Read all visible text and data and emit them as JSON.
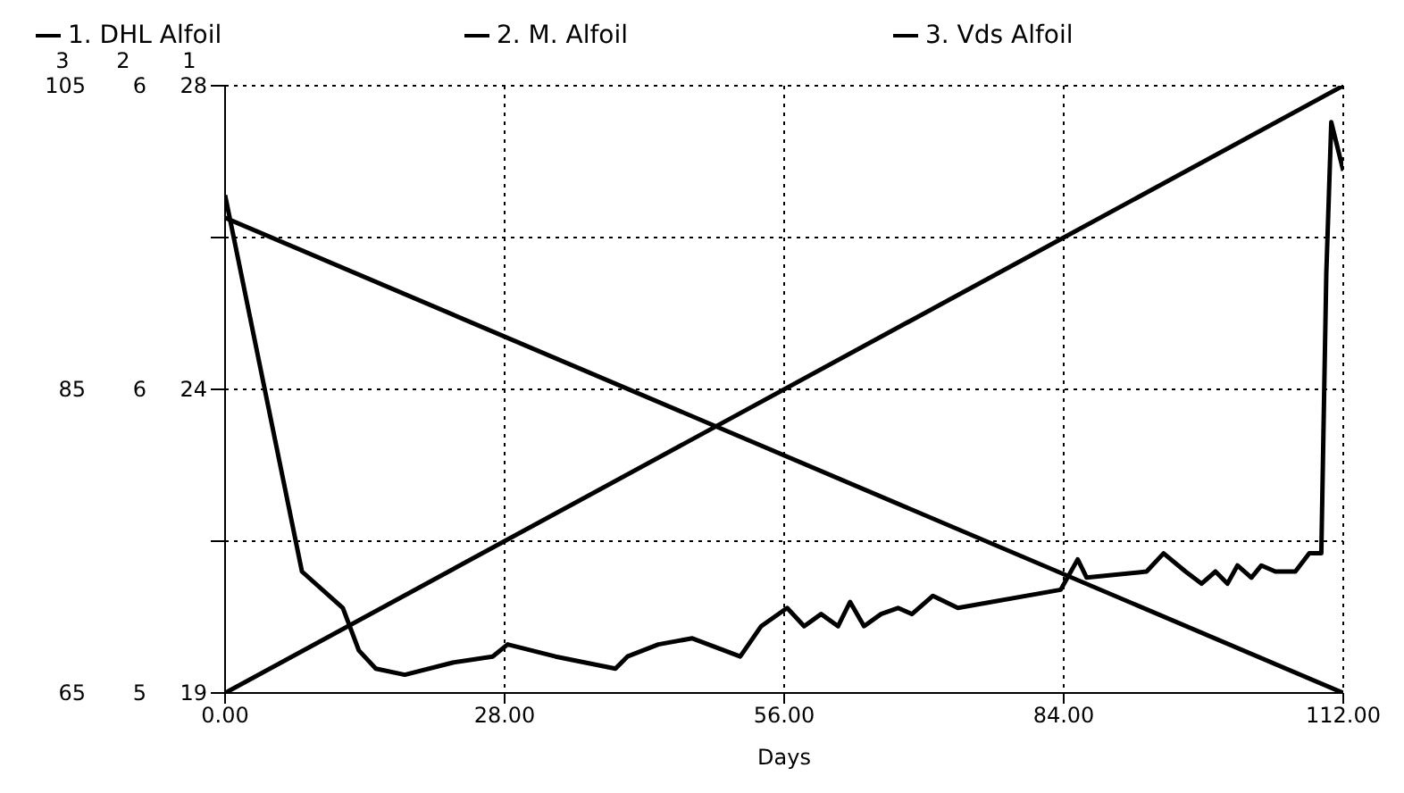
{
  "chart_data": {
    "type": "line",
    "xlabel": "Days",
    "ylabel": "1",
    "y2label": "2",
    "y3label": "3",
    "legend": "top",
    "grid": true,
    "marker": "none",
    "line_style": "solid",
    "xlim": [
      0,
      112
    ],
    "xticks": [
      {
        "value": 0,
        "label": "0.00"
      },
      {
        "value": 28,
        "label": "28.00"
      },
      {
        "value": 56,
        "label": "56.00"
      },
      {
        "value": 84,
        "label": "84.00"
      },
      {
        "value": 112,
        "label": "112.00"
      }
    ],
    "ylim": [
      19.4,
      28.4
    ],
    "yticks": [
      {
        "value": 19.4,
        "label": "19"
      },
      {
        "value": 21.65,
        "label": null
      },
      {
        "value": 23.9,
        "label": "24"
      },
      {
        "value": 26.15,
        "label": null
      },
      {
        "value": 28.4,
        "label": "28"
      }
    ],
    "y2lim": [
      5.4,
      6.4
    ],
    "y2ticks": [
      {
        "value": 5.4,
        "label": "5"
      },
      {
        "value": 5.9,
        "label": "6"
      },
      {
        "value": 6.4,
        "label": "6"
      }
    ],
    "y3lim": [
      65,
      105
    ],
    "y3ticks": [
      65,
      85,
      105
    ],
    "series": [
      {
        "name": "1. DHL Alfoil",
        "color": "#000000",
        "x": [
          0,
          112
        ],
        "values": [
          19.4,
          28.4
        ]
      },
      {
        "name": "2. M. Alfoil",
        "color": "#000000",
        "axis": "y2",
        "x": [
          0,
          7.7,
          11.8,
          13.4,
          15.1,
          18,
          22.8,
          26.8,
          28.3,
          33.1,
          39.1,
          40.3,
          43.4,
          46.8,
          51.6,
          53.7,
          56.3,
          58,
          59.7,
          61.4,
          62.6,
          64,
          65.7,
          67.4,
          68.8,
          70.9,
          73.4,
          83.7,
          85.4,
          86.3,
          92.3,
          94,
          96.2,
          97.8,
          99.2,
          100.4,
          101.4,
          102.8,
          103.8,
          105.2,
          107.2,
          108.6,
          109.8,
          110.3,
          110.8,
          112
        ],
        "values": [
          6.22,
          5.6,
          5.54,
          5.47,
          5.44,
          5.43,
          5.45,
          5.46,
          5.48,
          5.46,
          5.44,
          5.46,
          5.48,
          5.49,
          5.46,
          5.51,
          5.54,
          5.51,
          5.53,
          5.51,
          5.55,
          5.51,
          5.53,
          5.54,
          5.53,
          5.56,
          5.54,
          5.57,
          5.62,
          5.59,
          5.6,
          5.63,
          5.6,
          5.58,
          5.6,
          5.58,
          5.61,
          5.59,
          5.61,
          5.6,
          5.6,
          5.63,
          5.63,
          6.09,
          6.34,
          6.26
        ]
      },
      {
        "name": "3. Vds Alfoil",
        "color": "#000000",
        "axis": "y3",
        "x": [
          0,
          112
        ],
        "values": [
          96.3,
          65
        ]
      }
    ]
  }
}
